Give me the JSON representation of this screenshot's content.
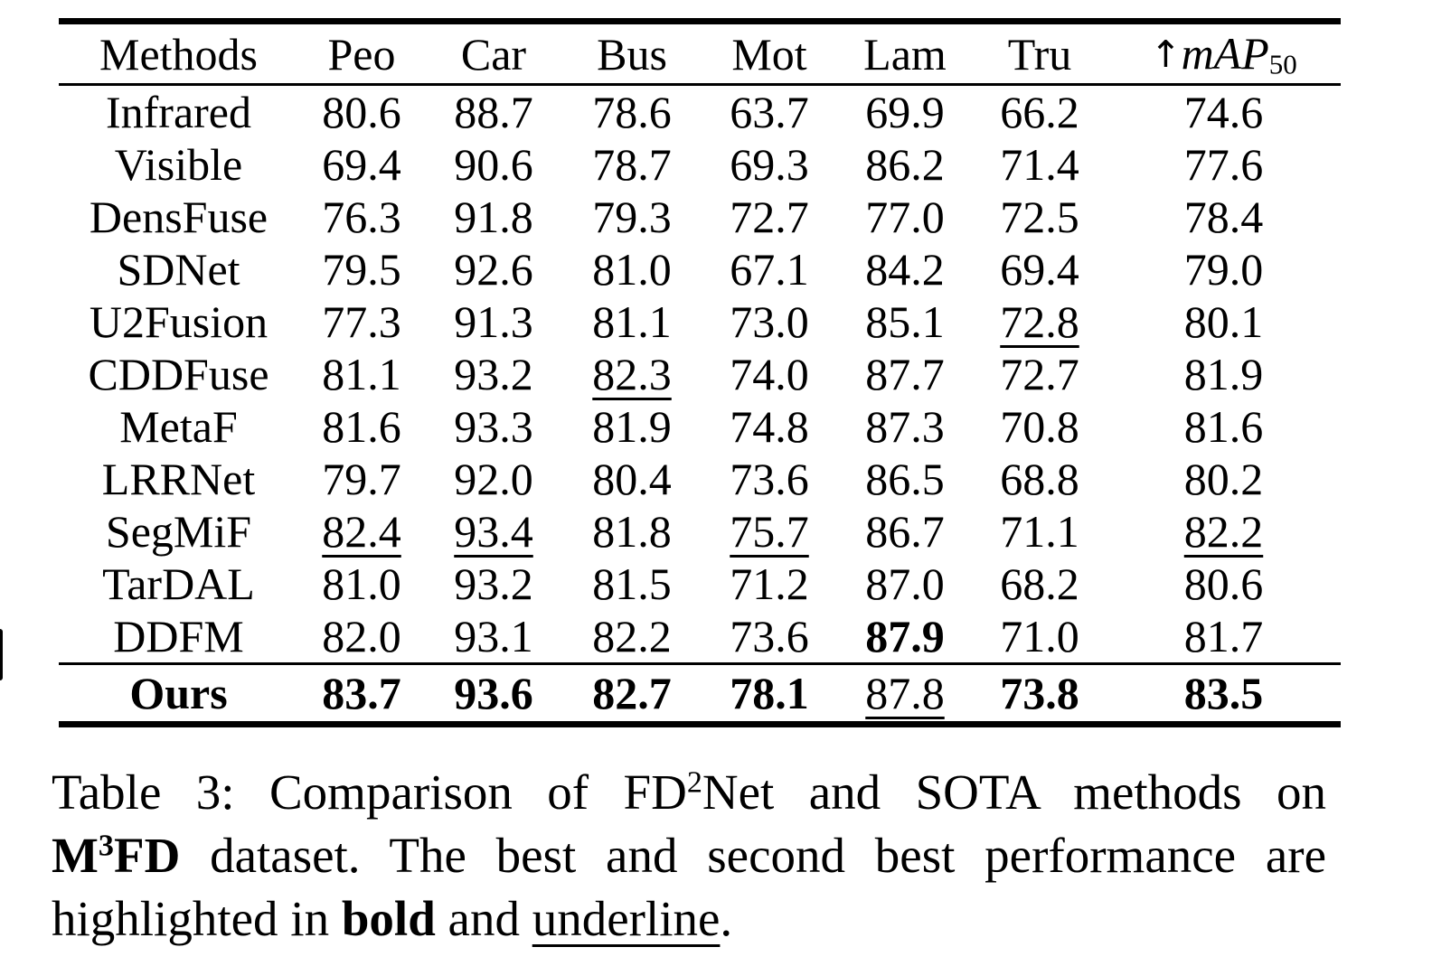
{
  "table": {
    "columns": [
      "Methods",
      "Peo",
      "Car",
      "Bus",
      "Mot",
      "Lam",
      "Tru"
    ],
    "map_header": {
      "arrow": "↑",
      "main": "mAP",
      "sub": "50"
    },
    "rows": [
      {
        "method": "Infrared",
        "method_style": "",
        "final": false,
        "values": [
          "80.6",
          "88.7",
          "78.6",
          "63.7",
          "69.9",
          "66.2",
          "74.6"
        ],
        "styles": [
          "",
          "",
          "",
          "",
          "",
          "",
          ""
        ]
      },
      {
        "method": "Visible",
        "method_style": "",
        "final": false,
        "values": [
          "69.4",
          "90.6",
          "78.7",
          "69.3",
          "86.2",
          "71.4",
          "77.6"
        ],
        "styles": [
          "",
          "",
          "",
          "",
          "",
          "",
          ""
        ]
      },
      {
        "method": "DensFuse",
        "method_style": "",
        "final": false,
        "values": [
          "76.3",
          "91.8",
          "79.3",
          "72.7",
          "77.0",
          "72.5",
          "78.4"
        ],
        "styles": [
          "",
          "",
          "",
          "",
          "",
          "",
          ""
        ]
      },
      {
        "method": "SDNet",
        "method_style": "",
        "final": false,
        "values": [
          "79.5",
          "92.6",
          "81.0",
          "67.1",
          "84.2",
          "69.4",
          "79.0"
        ],
        "styles": [
          "",
          "",
          "",
          "",
          "",
          "",
          ""
        ]
      },
      {
        "method": "U2Fusion",
        "method_style": "",
        "final": false,
        "values": [
          "77.3",
          "91.3",
          "81.1",
          "73.0",
          "85.1",
          "72.8",
          "80.1"
        ],
        "styles": [
          "",
          "",
          "",
          "",
          "",
          "u",
          ""
        ]
      },
      {
        "method": "CDDFuse",
        "method_style": "",
        "final": false,
        "values": [
          "81.1",
          "93.2",
          "82.3",
          "74.0",
          "87.7",
          "72.7",
          "81.9"
        ],
        "styles": [
          "",
          "",
          "u",
          "",
          "",
          "",
          ""
        ]
      },
      {
        "method": "MetaF",
        "method_style": "",
        "final": false,
        "values": [
          "81.6",
          "93.3",
          "81.9",
          "74.8",
          "87.3",
          "70.8",
          "81.6"
        ],
        "styles": [
          "",
          "",
          "",
          "",
          "",
          "",
          ""
        ]
      },
      {
        "method": "LRRNet",
        "method_style": "",
        "final": false,
        "values": [
          "79.7",
          "92.0",
          "80.4",
          "73.6",
          "86.5",
          "68.8",
          "80.2"
        ],
        "styles": [
          "",
          "",
          "",
          "",
          "",
          "",
          ""
        ]
      },
      {
        "method": "SegMiF",
        "method_style": "",
        "final": false,
        "values": [
          "82.4",
          "93.4",
          "81.8",
          "75.7",
          "86.7",
          "71.1",
          "82.2"
        ],
        "styles": [
          "u",
          "u",
          "",
          "u",
          "",
          "",
          "u"
        ]
      },
      {
        "method": "TarDAL",
        "method_style": "",
        "final": false,
        "values": [
          "81.0",
          "93.2",
          "81.5",
          "71.2",
          "87.0",
          "68.2",
          "80.6"
        ],
        "styles": [
          "",
          "",
          "",
          "",
          "",
          "",
          ""
        ]
      },
      {
        "method": "DDFM",
        "method_style": "",
        "final": false,
        "values": [
          "82.0",
          "93.1",
          "82.2",
          "73.6",
          "87.9",
          "71.0",
          "81.7"
        ],
        "styles": [
          "",
          "",
          "",
          "",
          "b",
          "",
          ""
        ]
      },
      {
        "method": "Ours",
        "method_style": "b",
        "final": true,
        "values": [
          "83.7",
          "93.6",
          "82.7",
          "78.1",
          "87.8",
          "73.8",
          "83.5"
        ],
        "styles": [
          "b",
          "b",
          "b",
          "b",
          "u",
          "b",
          "b"
        ]
      }
    ]
  },
  "caption": {
    "lines": [
      {
        "justify": true,
        "segments": [
          {
            "text": "Table 3: Comparison of FD",
            "style": ""
          },
          {
            "text": "2",
            "style": "sup"
          },
          {
            "text": "Net and SOTA methods on",
            "style": ""
          }
        ]
      },
      {
        "justify": true,
        "segments": [
          {
            "text": "M",
            "style": "b"
          },
          {
            "text": "3",
            "style": "b sup"
          },
          {
            "text": "FD",
            "style": "b"
          },
          {
            "text": " dataset. The best and second best performance are",
            "style": ""
          }
        ]
      },
      {
        "justify": false,
        "segments": [
          {
            "text": "highlighted in ",
            "style": ""
          },
          {
            "text": "bold",
            "style": "b"
          },
          {
            "text": " and ",
            "style": ""
          },
          {
            "text": "underline",
            "style": "u"
          },
          {
            "text": ".",
            "style": ""
          }
        ]
      }
    ]
  }
}
